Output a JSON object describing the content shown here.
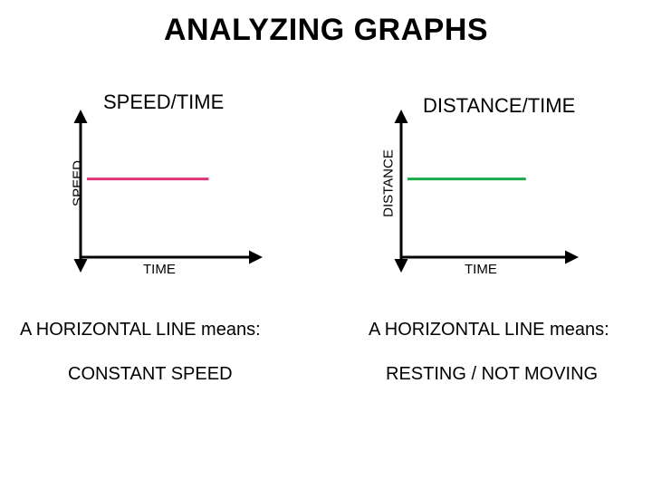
{
  "page": {
    "title": "ANALYZING GRAPHS"
  },
  "colors": {
    "axis": "#000000",
    "speed_line": "#e0337a",
    "distance_line": "#1aaa4a"
  },
  "chart_data": [
    {
      "type": "line",
      "title": "SPEED/TIME",
      "xlabel": "TIME",
      "ylabel": "SPEED",
      "series": [
        {
          "x": [
            0,
            1
          ],
          "y": [
            1,
            1
          ]
        }
      ],
      "xlim": [
        0,
        1.4
      ],
      "ylim": [
        0,
        1.5
      ],
      "grid": false,
      "caption": "A HORIZONTAL LINE means:",
      "meaning": "CONSTANT SPEED"
    },
    {
      "type": "line",
      "title": "DISTANCE/TIME",
      "xlabel": "TIME",
      "ylabel": "DISTANCE",
      "series": [
        {
          "x": [
            0,
            1
          ],
          "y": [
            1,
            1
          ]
        }
      ],
      "xlim": [
        0,
        1.4
      ],
      "ylim": [
        0,
        1.5
      ],
      "grid": false,
      "caption": "A HORIZONTAL LINE means:",
      "meaning": "RESTING / NOT MOVING"
    }
  ]
}
